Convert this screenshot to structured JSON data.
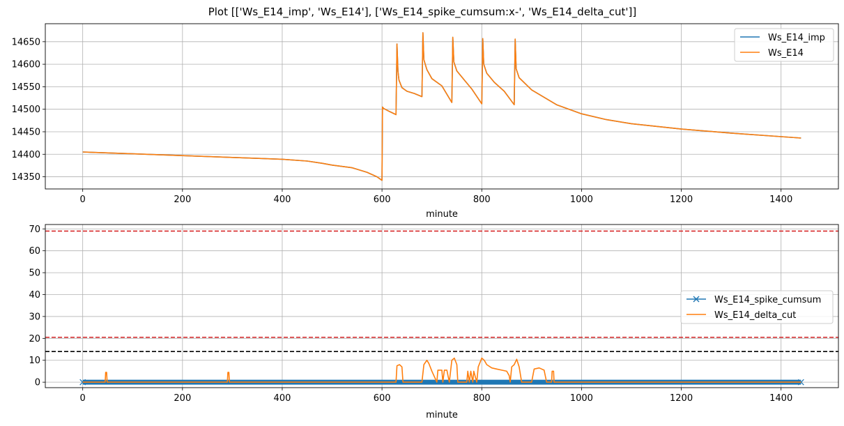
{
  "figure": {
    "title": "Plot [['Ws_E14_imp', 'Ws_E14'], ['Ws_E14_spike_cumsum:x-', 'Ws_E14_delta_cut']]"
  },
  "colors": {
    "blue": "#1f77b4",
    "orange": "#ff7f0e",
    "red": "#d62728",
    "black": "#000000",
    "grid": "#b0b0b0"
  },
  "chart_data": [
    {
      "type": "line",
      "xlabel": "minute",
      "ylabel": "",
      "xlim": [
        -75,
        1515
      ],
      "ylim": [
        14323,
        14690
      ],
      "xticks": [
        0,
        200,
        400,
        600,
        800,
        1000,
        1200,
        1400
      ],
      "yticks": [
        14350,
        14400,
        14450,
        14500,
        14550,
        14600,
        14650
      ],
      "grid": true,
      "legend": "upper right",
      "series": [
        {
          "name": "Ws_E14_imp",
          "color": "#1f77b4",
          "x": [
            0,
            100,
            200,
            300,
            400,
            450,
            480,
            500,
            540,
            570,
            590,
            600,
            601,
            603,
            615,
            628,
            630,
            632,
            634,
            640,
            650,
            665,
            680,
            682,
            684,
            690,
            700,
            720,
            740,
            742,
            744,
            750,
            765,
            780,
            800,
            802,
            804,
            810,
            825,
            845,
            865,
            867,
            869,
            875,
            900,
            950,
            1000,
            1050,
            1100,
            1200,
            1300,
            1440
          ],
          "y": [
            14405,
            14401,
            14397,
            14393,
            14389,
            14385,
            14380,
            14376,
            14370,
            14360,
            14350,
            14342,
            14505,
            14502,
            14495,
            14488,
            14645,
            14585,
            14565,
            14548,
            14540,
            14535,
            14528,
            14670,
            14610,
            14588,
            14568,
            14552,
            14515,
            14660,
            14605,
            14585,
            14565,
            14545,
            14512,
            14657,
            14600,
            14580,
            14560,
            14540,
            14510,
            14656,
            14590,
            14570,
            14543,
            14510,
            14490,
            14477,
            14468,
            14456,
            14447,
            14436
          ]
        },
        {
          "name": "Ws_E14",
          "color": "#ff7f0e",
          "x": [
            0,
            100,
            200,
            300,
            400,
            450,
            480,
            500,
            540,
            570,
            590,
            600,
            601,
            603,
            615,
            628,
            630,
            632,
            634,
            640,
            650,
            665,
            680,
            682,
            684,
            690,
            700,
            720,
            740,
            742,
            744,
            750,
            765,
            780,
            800,
            802,
            804,
            810,
            825,
            845,
            865,
            867,
            869,
            875,
            900,
            950,
            1000,
            1050,
            1100,
            1200,
            1300,
            1440
          ],
          "y": [
            14405,
            14401,
            14397,
            14393,
            14389,
            14385,
            14380,
            14376,
            14370,
            14360,
            14350,
            14342,
            14505,
            14502,
            14495,
            14488,
            14645,
            14585,
            14565,
            14548,
            14540,
            14535,
            14528,
            14670,
            14610,
            14588,
            14568,
            14552,
            14515,
            14660,
            14605,
            14585,
            14565,
            14545,
            14512,
            14657,
            14600,
            14580,
            14560,
            14540,
            14510,
            14656,
            14590,
            14570,
            14543,
            14510,
            14490,
            14477,
            14468,
            14456,
            14447,
            14436
          ]
        }
      ]
    },
    {
      "type": "line",
      "xlabel": "minute",
      "ylabel": "",
      "xlim": [
        -75,
        1515
      ],
      "ylim": [
        -2.5,
        72
      ],
      "xticks": [
        0,
        200,
        400,
        600,
        800,
        1000,
        1200,
        1400
      ],
      "yticks": [
        0,
        10,
        20,
        30,
        40,
        50,
        60,
        70
      ],
      "grid": true,
      "legend": "center right",
      "hlines": [
        {
          "y": 69,
          "color": "#d62728",
          "style": "dashed"
        },
        {
          "y": 20.5,
          "color": "#d62728",
          "style": "dashed"
        },
        {
          "y": 14,
          "color": "#000000",
          "style": "dashed"
        }
      ],
      "series": [
        {
          "name": "Ws_E14_spike_cumsum",
          "color": "#1f77b4",
          "marker": "x",
          "x": [
            0,
            1440
          ],
          "y": [
            0,
            0
          ]
        },
        {
          "name": "Ws_E14_delta_cut",
          "color": "#ff7f0e",
          "x": [
            0,
            45,
            46,
            48,
            49,
            290,
            291,
            293,
            294,
            628,
            630,
            635,
            640,
            642,
            680,
            684,
            690,
            694,
            700,
            710,
            712,
            720,
            722,
            725,
            730,
            735,
            740,
            745,
            750,
            752,
            770,
            772,
            775,
            778,
            782,
            784,
            790,
            793,
            800,
            805,
            810,
            820,
            830,
            840,
            850,
            855,
            857,
            860,
            865,
            870,
            875,
            880,
            900,
            905,
            915,
            925,
            930,
            940,
            941,
            944,
            945,
            1440
          ],
          "y": [
            0,
            0,
            4.5,
            4.5,
            0,
            0,
            4.5,
            4.5,
            0,
            0,
            7.5,
            8,
            7,
            0,
            0,
            8,
            10,
            8.5,
            5,
            0,
            5.5,
            5.5,
            0,
            5.5,
            5.5,
            0,
            10,
            11,
            8,
            0,
            0,
            5,
            0,
            5,
            0,
            5,
            0,
            7,
            11,
            10,
            8,
            6.5,
            6,
            5.5,
            5,
            3,
            0,
            7,
            8,
            10.5,
            7,
            0,
            0,
            6,
            6.5,
            5.5,
            0,
            0,
            5,
            5,
            0,
            0
          ]
        }
      ]
    }
  ]
}
